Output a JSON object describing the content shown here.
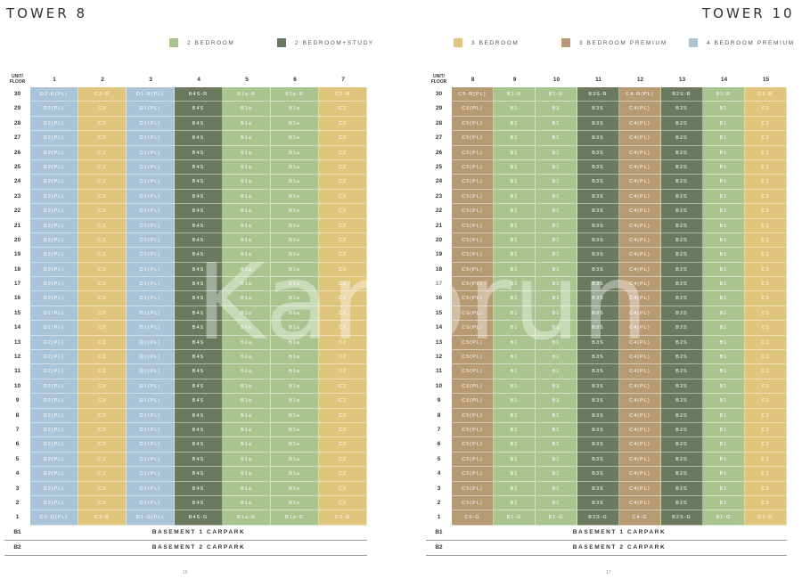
{
  "left": {
    "title": "TOWER 8",
    "legend": [
      {
        "label": "2 BEDROOM",
        "color": "#a9c48f"
      },
      {
        "label": "2 BEDROOM+STUDY",
        "color": "#6b7a5e"
      }
    ],
    "header_unit": "UNIT/",
    "header_floor": "FLOOR",
    "units": [
      "1",
      "2",
      "3",
      "4",
      "5",
      "6",
      "7"
    ],
    "colors": [
      "#a9c4d6",
      "#e0c57c",
      "#a9c4d6",
      "#6b7a5e",
      "#a9c48f",
      "#a9c48f",
      "#e0c57c"
    ],
    "floors": [
      {
        "floor": "30",
        "cells": [
          "D2-R(PL)",
          "C3-R",
          "D1-R(PL)",
          "B4S-R",
          "B1a-R",
          "B1a-R",
          "C2-R"
        ]
      },
      {
        "floor": "29",
        "cells": [
          "D2(PL)",
          "C3",
          "D1(PL)",
          "B4S",
          "B1a",
          "B1a",
          "C2"
        ]
      },
      {
        "floor": "28",
        "cells": [
          "D2(PL)",
          "C3",
          "D1(PL)",
          "B4S",
          "B1a",
          "B1a",
          "C2"
        ]
      },
      {
        "floor": "27",
        "cells": [
          "D2(PL)",
          "C3",
          "D1(PL)",
          "B4S",
          "B1a",
          "B1a",
          "C2"
        ]
      },
      {
        "floor": "26",
        "cells": [
          "D2(PL)",
          "C3",
          "D1(PL)",
          "B4S",
          "B1a",
          "B1a",
          "C2"
        ]
      },
      {
        "floor": "25",
        "cells": [
          "D2(PL)",
          "C3",
          "D1(PL)",
          "B4S",
          "B1a",
          "B1a",
          "C2"
        ]
      },
      {
        "floor": "24",
        "cells": [
          "D2(PL)",
          "C3",
          "D1(PL)",
          "B4S",
          "B1a",
          "B1a",
          "C2"
        ]
      },
      {
        "floor": "23",
        "cells": [
          "D2(PL)",
          "C3",
          "D1(PL)",
          "B4S",
          "B1a",
          "B1a",
          "C2"
        ]
      },
      {
        "floor": "22",
        "cells": [
          "D2(PL)",
          "C3",
          "D1(PL)",
          "B4S",
          "B1a",
          "B1a",
          "C2"
        ]
      },
      {
        "floor": "21",
        "cells": [
          "D2(PL)",
          "C3",
          "D1(PL)",
          "B4S",
          "B1a",
          "B1a",
          "C2"
        ]
      },
      {
        "floor": "20",
        "cells": [
          "D2(PL)",
          "C3",
          "D1(PL)",
          "B4S",
          "B1a",
          "B1a",
          "C2"
        ]
      },
      {
        "floor": "19",
        "cells": [
          "D2(PL)",
          "C3",
          "D1(PL)",
          "B4S",
          "B1a",
          "B1a",
          "C2"
        ]
      },
      {
        "floor": "18",
        "cells": [
          "D2(PL)",
          "C3",
          "D1(PL)",
          "B4S",
          "B1a",
          "B1a",
          "C2"
        ]
      },
      {
        "floor": "17",
        "cells": [
          "D2(PL)",
          "C3",
          "D1(PL)",
          "B4S",
          "B1a",
          "B1a",
          "C2"
        ]
      },
      {
        "floor": "16",
        "cells": [
          "D2(PL)",
          "C3",
          "D1(PL)",
          "B4S",
          "B1a",
          "B1a",
          "C2"
        ]
      },
      {
        "floor": "15",
        "cells": [
          "D2(PL)",
          "C3",
          "D1(PL)",
          "B4S",
          "B1a",
          "B1a",
          "C2"
        ]
      },
      {
        "floor": "14",
        "cells": [
          "D2(PL)",
          "C3",
          "D1(PL)",
          "B4S",
          "B1a",
          "B1a",
          "C2"
        ]
      },
      {
        "floor": "13",
        "cells": [
          "D2(PL)",
          "C3",
          "D1(PL)",
          "B4S",
          "B1a",
          "B1a",
          "C2"
        ]
      },
      {
        "floor": "12",
        "cells": [
          "D2(PL)",
          "C3",
          "D1(PL)",
          "B4S",
          "B1a",
          "B1a",
          "C2"
        ]
      },
      {
        "floor": "11",
        "cells": [
          "D2(PL)",
          "C3",
          "D1(PL)",
          "B4S",
          "B1a",
          "B1a",
          "C2"
        ]
      },
      {
        "floor": "10",
        "cells": [
          "D2(PL)",
          "C3",
          "D1(PL)",
          "B4S",
          "B1a",
          "B1a",
          "C2"
        ]
      },
      {
        "floor": "9",
        "cells": [
          "D2(PL)",
          "C3",
          "D1(PL)",
          "B4S",
          "B1a",
          "B1a",
          "C2"
        ]
      },
      {
        "floor": "8",
        "cells": [
          "D2(PL)",
          "C3",
          "D1(PL)",
          "B4S",
          "B1a",
          "B1a",
          "C2"
        ]
      },
      {
        "floor": "7",
        "cells": [
          "D2(PL)",
          "C3",
          "D1(PL)",
          "B4S",
          "B1a",
          "B1a",
          "C2"
        ]
      },
      {
        "floor": "6",
        "cells": [
          "D2(PL)",
          "C3",
          "D1(PL)",
          "B4S",
          "B1a",
          "B1a",
          "C2"
        ]
      },
      {
        "floor": "5",
        "cells": [
          "D2(PL)",
          "C3",
          "D1(PL)",
          "B4S",
          "B1a",
          "B1a",
          "C2"
        ]
      },
      {
        "floor": "4",
        "cells": [
          "D2(PL)",
          "C3",
          "D1(PL)",
          "B4S",
          "B1a",
          "B1a",
          "C2"
        ]
      },
      {
        "floor": "3",
        "cells": [
          "D2(PL)",
          "C3",
          "D1(PL)",
          "B4S",
          "B1a",
          "B1a",
          "C2"
        ]
      },
      {
        "floor": "2",
        "cells": [
          "D2(PL)",
          "C3",
          "D1(PL)",
          "B4S",
          "B1a",
          "B1a",
          "C2"
        ]
      },
      {
        "floor": "1",
        "cells": [
          "D2-G(PL)",
          "C3-G",
          "D1-G(PL)",
          "B4S-G",
          "B1a-G",
          "B1a-G",
          "C2-G"
        ]
      }
    ],
    "basements": [
      {
        "label": "B1",
        "text": "BASEMENT 1 CARPARK"
      },
      {
        "label": "B2",
        "text": "BASEMENT 2 CARPARK"
      }
    ],
    "page_number": "16"
  },
  "right": {
    "title": "TOWER 10",
    "legend": [
      {
        "label": "3 BEDROOM",
        "color": "#e0c57c"
      },
      {
        "label": "3 BEDROOM PREMIUM",
        "color": "#b59a72"
      },
      {
        "label": "4 BEDROOM PREMIUM",
        "color": "#a9c4d6"
      }
    ],
    "header_unit": "UNIT/",
    "header_floor": "FLOOR",
    "units": [
      "8",
      "9",
      "10",
      "11",
      "12",
      "13",
      "14",
      "15"
    ],
    "colors": [
      "#b59a72",
      "#a9c48f",
      "#a9c48f",
      "#6b7a5e",
      "#b59a72",
      "#6b7a5e",
      "#a9c48f",
      "#e0c57c"
    ],
    "floors": [
      {
        "floor": "30",
        "cells": [
          "C5-R(PL)",
          "B1-R",
          "B1-R",
          "B3S-R",
          "C4-R(PL)",
          "B2S-R",
          "B1-R",
          "C1-R"
        ]
      },
      {
        "floor": "29",
        "cells": [
          "C5(PL)",
          "B1",
          "B1",
          "B3S",
          "C4(PL)",
          "B2S",
          "B1",
          "C1"
        ]
      },
      {
        "floor": "28",
        "cells": [
          "C5(PL)",
          "B1",
          "B1",
          "B3S",
          "C4(PL)",
          "B2S",
          "B1",
          "C1"
        ]
      },
      {
        "floor": "27",
        "cells": [
          "C5(PL)",
          "B1",
          "B1",
          "B3S",
          "C4(PL)",
          "B2S",
          "B1",
          "C1"
        ]
      },
      {
        "floor": "26",
        "cells": [
          "C5(PL)",
          "B1",
          "B1",
          "B3S",
          "C4(PL)",
          "B2S",
          "B1",
          "C1"
        ]
      },
      {
        "floor": "25",
        "cells": [
          "C5(PL)",
          "B1",
          "B1",
          "B3S",
          "C4(PL)",
          "B2S",
          "B1",
          "C1"
        ]
      },
      {
        "floor": "24",
        "cells": [
          "C5(PL)",
          "B1",
          "B1",
          "B3S",
          "C4(PL)",
          "B2S",
          "B1",
          "C1"
        ]
      },
      {
        "floor": "23",
        "cells": [
          "C5(PL)",
          "B1",
          "B1",
          "B3S",
          "C4(PL)",
          "B2S",
          "B1",
          "C1"
        ]
      },
      {
        "floor": "22",
        "cells": [
          "C5(PL)",
          "B1",
          "B1",
          "B3S",
          "C4(PL)",
          "B2S",
          "B1",
          "C1"
        ]
      },
      {
        "floor": "21",
        "cells": [
          "C5(PL)",
          "B1",
          "B1",
          "B3S",
          "C4(PL)",
          "B2S",
          "B1",
          "C1"
        ]
      },
      {
        "floor": "20",
        "cells": [
          "C5(PL)",
          "B1",
          "B1",
          "B3S",
          "C4(PL)",
          "B2S",
          "B1",
          "C1"
        ]
      },
      {
        "floor": "19",
        "cells": [
          "C5(PL)",
          "B1",
          "B1",
          "B3S",
          "C4(PL)",
          "B2S",
          "B1",
          "C1"
        ]
      },
      {
        "floor": "18",
        "cells": [
          "C5(PL)",
          "B1",
          "B1",
          "B3S",
          "C4(PL)",
          "B2S",
          "B1",
          "C1"
        ]
      },
      {
        "floor": "17",
        "cells": [
          "C5(PL)",
          "B1",
          "B1",
          "B3S",
          "C4(PL)",
          "B2S",
          "B1",
          "C1"
        ]
      },
      {
        "floor": "16",
        "cells": [
          "C5(PL)",
          "B1",
          "B1",
          "B3S",
          "C4(PL)",
          "B2S",
          "B1",
          "C1"
        ]
      },
      {
        "floor": "15",
        "cells": [
          "C5(PL)",
          "B1",
          "B1",
          "B3S",
          "C4(PL)",
          "B2S",
          "B1",
          "C1"
        ]
      },
      {
        "floor": "14",
        "cells": [
          "C5(PL)",
          "B1",
          "B1",
          "B3S",
          "C4(PL)",
          "B2S",
          "B1",
          "C1"
        ]
      },
      {
        "floor": "13",
        "cells": [
          "C5(PL)",
          "B1",
          "B1",
          "B3S",
          "C4(PL)",
          "B2S",
          "B1",
          "C1"
        ]
      },
      {
        "floor": "12",
        "cells": [
          "C5(PL)",
          "B1",
          "B1",
          "B3S",
          "C4(PL)",
          "B2S",
          "B1",
          "C1"
        ]
      },
      {
        "floor": "11",
        "cells": [
          "C5(PL)",
          "B1",
          "B1",
          "B3S",
          "C4(PL)",
          "B2S",
          "B1",
          "C1"
        ]
      },
      {
        "floor": "10",
        "cells": [
          "C5(PL)",
          "B1",
          "B1",
          "B3S",
          "C4(PL)",
          "B2S",
          "B1",
          "C1"
        ]
      },
      {
        "floor": "9",
        "cells": [
          "C5(PL)",
          "B1",
          "B1",
          "B3S",
          "C4(PL)",
          "B2S",
          "B1",
          "C1"
        ]
      },
      {
        "floor": "8",
        "cells": [
          "C5(PL)",
          "B1",
          "B1",
          "B3S",
          "C4(PL)",
          "B2S",
          "B1",
          "C1"
        ]
      },
      {
        "floor": "7",
        "cells": [
          "C5(PL)",
          "B1",
          "B1",
          "B3S",
          "C4(PL)",
          "B2S",
          "B1",
          "C1"
        ]
      },
      {
        "floor": "6",
        "cells": [
          "C5(PL)",
          "B1",
          "B1",
          "B3S",
          "C4(PL)",
          "B2S",
          "B1",
          "C1"
        ]
      },
      {
        "floor": "5",
        "cells": [
          "C5(PL)",
          "B1",
          "B1",
          "B3S",
          "C4(PL)",
          "B2S",
          "B1",
          "C1"
        ]
      },
      {
        "floor": "4",
        "cells": [
          "C5(PL)",
          "B1",
          "B1",
          "B3S",
          "C4(PL)",
          "B2S",
          "B1",
          "C1"
        ]
      },
      {
        "floor": "3",
        "cells": [
          "C5(PL)",
          "B1",
          "B1",
          "B3S",
          "C4(PL)",
          "B2S",
          "B1",
          "C1"
        ]
      },
      {
        "floor": "2",
        "cells": [
          "C5(PL)",
          "B1",
          "B1",
          "B3S",
          "C4(PL)",
          "B2S",
          "B1",
          "C1"
        ]
      },
      {
        "floor": "1",
        "cells": [
          "C5-G",
          "B1-G",
          "B1-G",
          "B3S-G",
          "C4-G",
          "B2S-G",
          "B1-G",
          "C1-G"
        ]
      }
    ],
    "basements": [
      {
        "label": "B1",
        "text": "BASEMENT 1 CARPARK"
      },
      {
        "label": "B2",
        "text": "BASEMENT 2 CARPARK"
      }
    ],
    "page_number": "17"
  }
}
